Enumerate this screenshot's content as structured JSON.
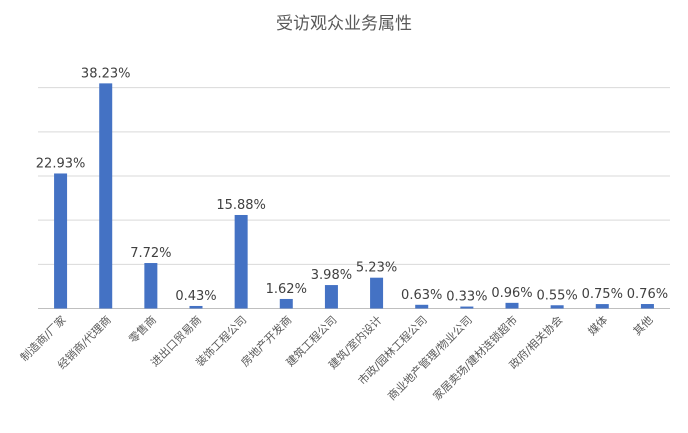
{
  "chart_data": {
    "type": "bar",
    "title": "受访观众业务属性",
    "xlabel": "",
    "ylabel": "",
    "ylim": [
      0,
      45
    ],
    "grid": true,
    "legend": "none",
    "color": "#4472c4",
    "categories": [
      "制造商/厂家",
      "经销商/代理商",
      "零售商",
      "进出口贸易商",
      "装饰工程公司",
      "房地产开发商",
      "建筑工程公司",
      "建筑/室内设计",
      "市政/园林工程公司",
      "商业地产管理/物业公司",
      "家居卖场/建材连锁超市",
      "政府/相关协会",
      "媒体",
      "其他"
    ],
    "values": [
      22.93,
      38.23,
      7.72,
      0.43,
      15.88,
      1.62,
      3.98,
      5.23,
      0.63,
      0.33,
      0.96,
      0.55,
      0.75,
      0.76
    ],
    "labels": [
      "22.93%",
      "38.23%",
      "7.72%",
      "0.43%",
      "15.88%",
      "1.62%",
      "3.98%",
      "5.23%",
      "0.63%",
      "0.33%",
      "0.96%",
      "0.55%",
      "0.75%",
      "0.76%"
    ]
  }
}
